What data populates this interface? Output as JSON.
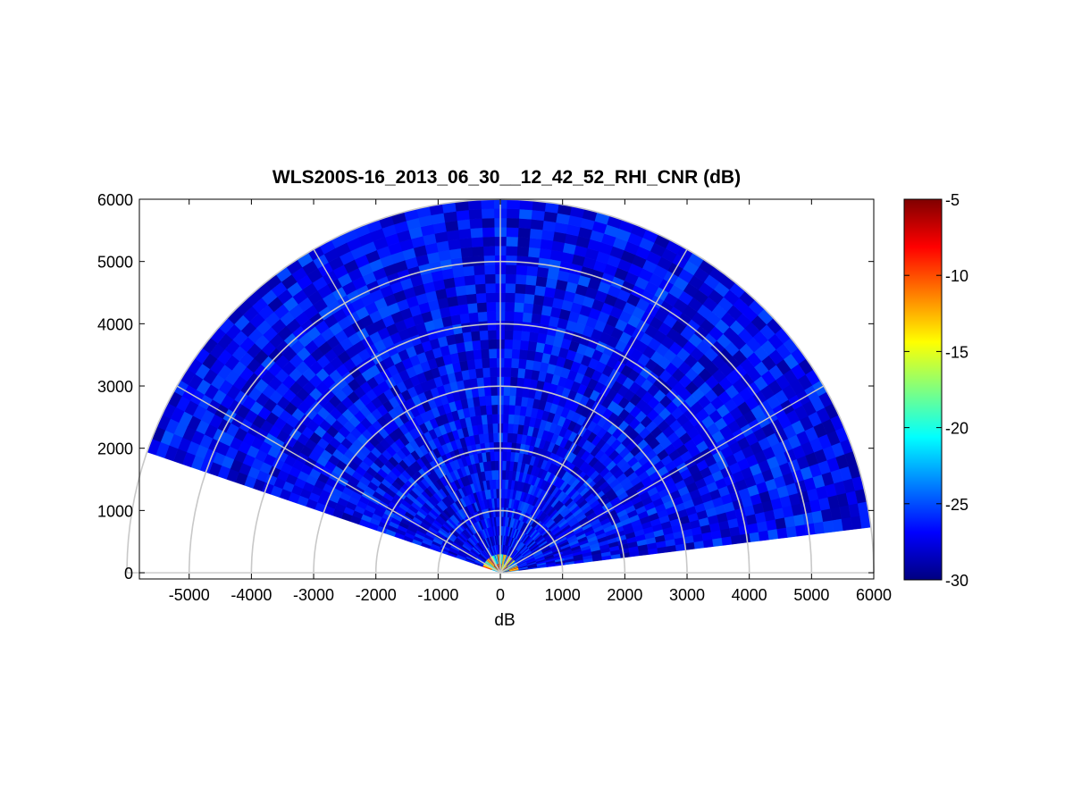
{
  "chart_data": {
    "type": "heatmap",
    "subtype": "polar-rhi-scan",
    "title": "WLS200S-16_2013_06_30__12_42_52_RHI_CNR (dB)",
    "xlabel": "dB",
    "ylabel": "",
    "xlim": [
      -5800,
      6000
    ],
    "ylim": [
      -100,
      6000
    ],
    "x_ticks": [
      -5000,
      -4000,
      -3000,
      -2000,
      -1000,
      0,
      1000,
      2000,
      3000,
      4000,
      5000,
      6000
    ],
    "y_ticks": [
      0,
      1000,
      2000,
      3000,
      4000,
      5000,
      6000
    ],
    "range_rings": [
      1000,
      2000,
      3000,
      4000,
      5000,
      6000
    ],
    "angle_spokes_deg": [
      0,
      30,
      60,
      90,
      120,
      150,
      180
    ],
    "scan_sector_deg": [
      7,
      161
    ],
    "max_range": 6000,
    "grid": true,
    "colormap": "jet",
    "colorbar": {
      "range": [
        -30,
        -5
      ],
      "ticks": [
        -5,
        -10,
        -15,
        -20,
        -25,
        -30
      ],
      "position": "right"
    },
    "dominant_value_db": -27,
    "near_field_peak_db": -5
  }
}
